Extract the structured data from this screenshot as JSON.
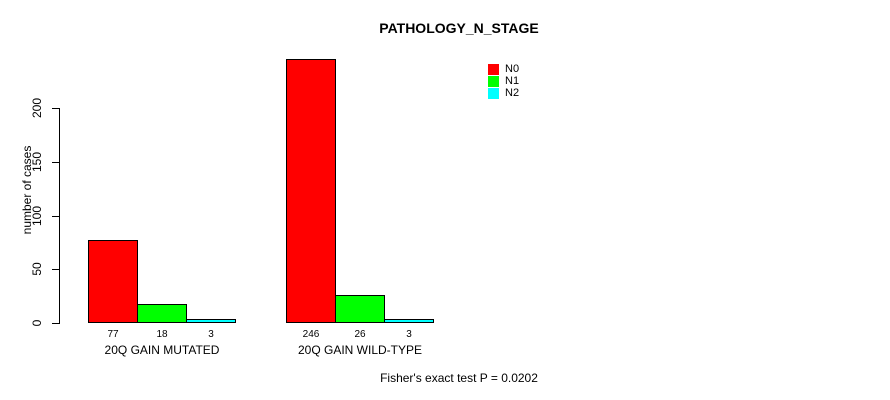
{
  "figure": {
    "background": "#FFFFFF",
    "text_color": "#000000"
  },
  "chart_data": {
    "type": "bar",
    "title": "PATHOLOGY_N_STAGE",
    "ylabel": "number of cases",
    "xlabel": "",
    "categories": [
      "20Q GAIN MUTATED",
      "20Q GAIN WILD-TYPE"
    ],
    "series": [
      {
        "name": "N0",
        "color": "#FF0000",
        "values": [
          77,
          246
        ]
      },
      {
        "name": "N1",
        "color": "#00FF00",
        "values": [
          18,
          26
        ]
      },
      {
        "name": "N2",
        "color": "#00FFFF",
        "values": [
          3,
          3
        ]
      }
    ],
    "bar_value_labels": [
      [
        "77",
        "18",
        "3"
      ],
      [
        "246",
        "26",
        "3"
      ]
    ],
    "yticks": [
      0,
      50,
      100,
      150,
      200
    ],
    "ylim": [
      0,
      250
    ],
    "bar_border_color": "#000000",
    "grid": false,
    "legend": {
      "position": "top-right",
      "entries": [
        "N0",
        "N1",
        "N2"
      ]
    },
    "annotation": "Fisher's exact test P = 0.0202"
  }
}
